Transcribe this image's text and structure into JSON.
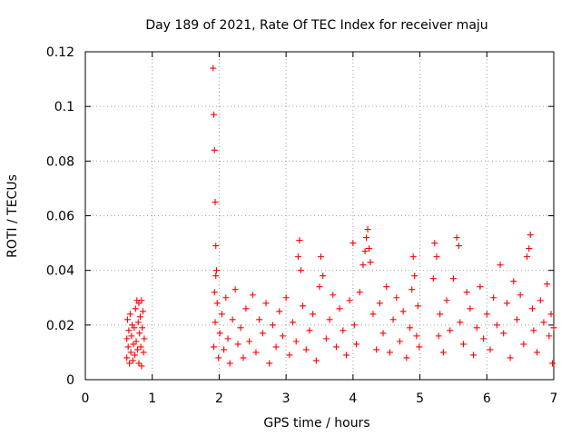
{
  "chart_data": {
    "type": "scatter",
    "title": "Day 189 of 2021, Rate Of TEC Index for receiver maju",
    "xlabel": "GPS time / hours",
    "ylabel": "ROTI / TECUs",
    "xlim": [
      0,
      7
    ],
    "ylim": [
      0,
      0.12
    ],
    "x_ticks": [
      0,
      1,
      2,
      3,
      4,
      5,
      6,
      7
    ],
    "x_tick_labels": [
      "0",
      "1",
      "2",
      "3",
      "4",
      "5",
      "6",
      "7"
    ],
    "y_ticks": [
      0,
      0.02,
      0.04,
      0.06,
      0.08,
      0.1,
      0.12
    ],
    "y_tick_labels": [
      "0",
      "0.02",
      "0.04",
      "0.06",
      "0.08",
      "0.1",
      "0.12"
    ],
    "grid": true,
    "marker": "+",
    "series": [
      {
        "name": "ROTI",
        "color": "#ff0000",
        "points": [
          [
            0.62,
            0.008
          ],
          [
            0.62,
            0.015
          ],
          [
            0.63,
            0.022
          ],
          [
            0.64,
            0.012
          ],
          [
            0.65,
            0.018
          ],
          [
            0.66,
            0.006
          ],
          [
            0.67,
            0.024
          ],
          [
            0.68,
            0.01
          ],
          [
            0.69,
            0.016
          ],
          [
            0.7,
            0.02
          ],
          [
            0.71,
            0.007
          ],
          [
            0.72,
            0.013
          ],
          [
            0.73,
            0.019
          ],
          [
            0.74,
            0.009
          ],
          [
            0.75,
            0.026
          ],
          [
            0.76,
            0.014
          ],
          [
            0.77,
            0.029
          ],
          [
            0.78,
            0.011
          ],
          [
            0.79,
            0.021
          ],
          [
            0.8,
            0.028
          ],
          [
            0.8,
            0.006
          ],
          [
            0.81,
            0.017
          ],
          [
            0.82,
            0.023
          ],
          [
            0.83,
            0.012
          ],
          [
            0.84,
            0.029
          ],
          [
            0.84,
            0.005
          ],
          [
            0.85,
            0.019
          ],
          [
            0.86,
            0.025
          ],
          [
            0.87,
            0.01
          ],
          [
            0.88,
            0.015
          ],
          [
            1.91,
            0.114
          ],
          [
            1.92,
            0.097
          ],
          [
            1.93,
            0.084
          ],
          [
            1.94,
            0.065
          ],
          [
            1.95,
            0.049
          ],
          [
            1.93,
            0.032
          ],
          [
            1.95,
            0.038
          ],
          [
            1.96,
            0.04
          ],
          [
            1.92,
            0.012
          ],
          [
            1.94,
            0.021
          ],
          [
            1.97,
            0.028
          ],
          [
            1.99,
            0.008
          ],
          [
            2.01,
            0.017
          ],
          [
            2.04,
            0.024
          ],
          [
            2.07,
            0.011
          ],
          [
            2.1,
            0.03
          ],
          [
            2.13,
            0.015
          ],
          [
            2.16,
            0.006
          ],
          [
            2.2,
            0.022
          ],
          [
            2.24,
            0.033
          ],
          [
            2.28,
            0.013
          ],
          [
            2.32,
            0.019
          ],
          [
            2.36,
            0.008
          ],
          [
            2.4,
            0.026
          ],
          [
            2.45,
            0.014
          ],
          [
            2.5,
            0.031
          ],
          [
            2.55,
            0.01
          ],
          [
            2.6,
            0.022
          ],
          [
            2.65,
            0.017
          ],
          [
            2.7,
            0.028
          ],
          [
            2.75,
            0.006
          ],
          [
            2.8,
            0.02
          ],
          [
            2.85,
            0.012
          ],
          [
            2.9,
            0.025
          ],
          [
            2.95,
            0.016
          ],
          [
            3.0,
            0.03
          ],
          [
            3.05,
            0.009
          ],
          [
            3.1,
            0.021
          ],
          [
            3.15,
            0.014
          ],
          [
            3.18,
            0.045
          ],
          [
            3.2,
            0.051
          ],
          [
            3.22,
            0.04
          ],
          [
            3.25,
            0.027
          ],
          [
            3.3,
            0.011
          ],
          [
            3.35,
            0.018
          ],
          [
            3.4,
            0.024
          ],
          [
            3.45,
            0.007
          ],
          [
            3.5,
            0.034
          ],
          [
            3.52,
            0.045
          ],
          [
            3.55,
            0.038
          ],
          [
            3.6,
            0.015
          ],
          [
            3.65,
            0.022
          ],
          [
            3.7,
            0.031
          ],
          [
            3.75,
            0.012
          ],
          [
            3.8,
            0.026
          ],
          [
            3.85,
            0.018
          ],
          [
            3.9,
            0.009
          ],
          [
            3.95,
            0.029
          ],
          [
            4.0,
            0.05
          ],
          [
            4.02,
            0.02
          ],
          [
            4.05,
            0.013
          ],
          [
            4.1,
            0.032
          ],
          [
            4.15,
            0.042
          ],
          [
            4.18,
            0.047
          ],
          [
            4.2,
            0.052
          ],
          [
            4.22,
            0.055
          ],
          [
            4.24,
            0.048
          ],
          [
            4.26,
            0.043
          ],
          [
            4.3,
            0.024
          ],
          [
            4.35,
            0.011
          ],
          [
            4.4,
            0.028
          ],
          [
            4.45,
            0.017
          ],
          [
            4.5,
            0.034
          ],
          [
            4.55,
            0.01
          ],
          [
            4.6,
            0.022
          ],
          [
            4.65,
            0.03
          ],
          [
            4.7,
            0.014
          ],
          [
            4.75,
            0.025
          ],
          [
            4.8,
            0.008
          ],
          [
            4.85,
            0.019
          ],
          [
            4.88,
            0.033
          ],
          [
            4.9,
            0.045
          ],
          [
            4.92,
            0.038
          ],
          [
            4.95,
            0.016
          ],
          [
            4.97,
            0.027
          ],
          [
            4.99,
            0.012
          ],
          [
            5.2,
            0.037
          ],
          [
            5.22,
            0.05
          ],
          [
            5.25,
            0.045
          ],
          [
            5.28,
            0.016
          ],
          [
            5.3,
            0.024
          ],
          [
            5.35,
            0.01
          ],
          [
            5.4,
            0.029
          ],
          [
            5.45,
            0.018
          ],
          [
            5.5,
            0.037
          ],
          [
            5.55,
            0.052
          ],
          [
            5.58,
            0.049
          ],
          [
            5.6,
            0.021
          ],
          [
            5.65,
            0.013
          ],
          [
            5.7,
            0.032
          ],
          [
            5.75,
            0.026
          ],
          [
            5.8,
            0.009
          ],
          [
            5.85,
            0.019
          ],
          [
            5.9,
            0.034
          ],
          [
            5.95,
            0.015
          ],
          [
            6.0,
            0.024
          ],
          [
            6.05,
            0.011
          ],
          [
            6.1,
            0.03
          ],
          [
            6.15,
            0.02
          ],
          [
            6.2,
            0.042
          ],
          [
            6.25,
            0.017
          ],
          [
            6.3,
            0.028
          ],
          [
            6.35,
            0.008
          ],
          [
            6.4,
            0.036
          ],
          [
            6.45,
            0.022
          ],
          [
            6.5,
            0.031
          ],
          [
            6.55,
            0.013
          ],
          [
            6.6,
            0.045
          ],
          [
            6.63,
            0.048
          ],
          [
            6.65,
            0.053
          ],
          [
            6.68,
            0.026
          ],
          [
            6.7,
            0.018
          ],
          [
            6.75,
            0.01
          ],
          [
            6.8,
            0.029
          ],
          [
            6.85,
            0.021
          ],
          [
            6.9,
            0.035
          ],
          [
            6.93,
            0.016
          ],
          [
            6.96,
            0.024
          ],
          [
            6.98,
            0.006
          ],
          [
            7.0,
            0.019
          ]
        ]
      }
    ]
  }
}
